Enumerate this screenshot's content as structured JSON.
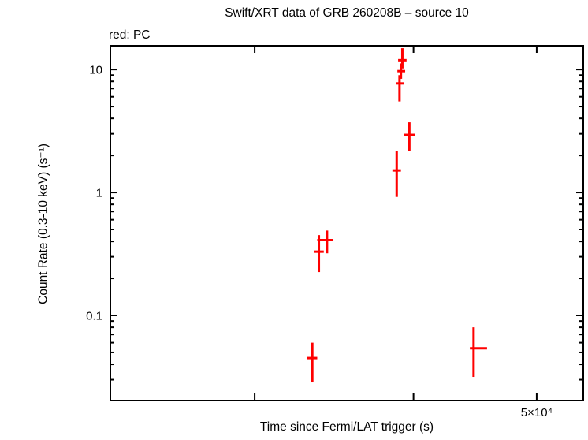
{
  "chart_data": {
    "type": "scatter",
    "title": "Swift/XRT data of GRB 260208B – source 10",
    "legend": "red: PC",
    "xlabel": "Time since Fermi/LAT trigger (s)",
    "ylabel": "Count Rate (0.3-10 keV) (s⁻¹)",
    "xscale": "log",
    "yscale": "log",
    "xlim": [
      23100,
      54400
    ],
    "ylim": [
      0.0203,
      15.6
    ],
    "x_ticks": [
      {
        "value": 30000,
        "label": ""
      },
      {
        "value": 40000,
        "label": ""
      },
      {
        "value": 50000,
        "label": "5×10⁴"
      }
    ],
    "y_ticks": [
      {
        "value": 10,
        "label": "10"
      },
      {
        "value": 1,
        "label": "1"
      },
      {
        "value": 0.1,
        "label": "0.1"
      }
    ],
    "grid": false,
    "frame_color": "#000000",
    "series": [
      {
        "name": "PC",
        "color": "#ff0000",
        "marker": "error-bar-cross",
        "points": [
          {
            "t": 33300,
            "t_lo": 33000,
            "t_hi": 33600,
            "rate": 0.045,
            "rate_lo": 0.0285,
            "rate_hi": 0.06
          },
          {
            "t": 33700,
            "t_lo": 33400,
            "t_hi": 34000,
            "rate": 0.33,
            "rate_lo": 0.225,
            "rate_hi": 0.45
          },
          {
            "t": 34200,
            "t_lo": 33600,
            "t_hi": 34600,
            "rate": 0.41,
            "rate_lo": 0.32,
            "rate_hi": 0.49
          },
          {
            "t": 39200,
            "t_lo": 38900,
            "t_hi": 39500,
            "rate": 11.9,
            "rate_lo": 10.2,
            "rate_hi": 14.9
          },
          {
            "t": 39100,
            "t_lo": 38850,
            "t_hi": 39400,
            "rate": 9.7,
            "rate_lo": 8.4,
            "rate_hi": 11.2
          },
          {
            "t": 39000,
            "t_lo": 38750,
            "t_hi": 39300,
            "rate": 7.7,
            "rate_lo": 5.5,
            "rate_hi": 9.0
          },
          {
            "t": 39700,
            "t_lo": 39300,
            "t_hi": 40100,
            "rate": 2.94,
            "rate_lo": 2.16,
            "rate_hi": 3.72
          },
          {
            "t": 38800,
            "t_lo": 38500,
            "t_hi": 39100,
            "rate": 1.51,
            "rate_lo": 0.92,
            "rate_hi": 2.16
          },
          {
            "t": 44600,
            "t_lo": 44300,
            "t_hi": 45700,
            "rate": 0.054,
            "rate_lo": 0.0316,
            "rate_hi": 0.08
          }
        ]
      }
    ]
  }
}
